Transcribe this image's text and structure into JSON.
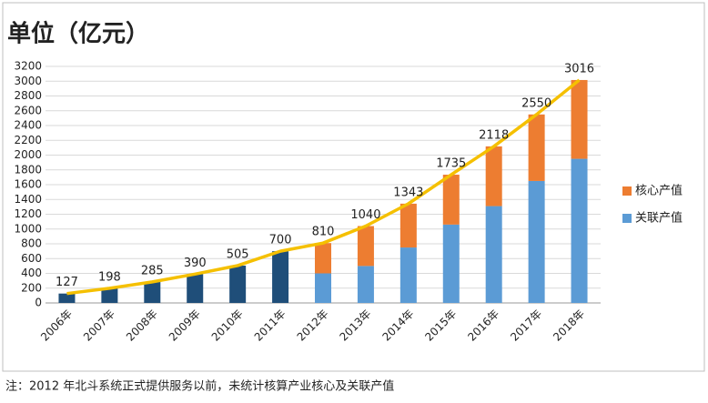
{
  "chart_data": {
    "type": "bar",
    "title": "单位（亿元）",
    "categories": [
      "2006年",
      "2007年",
      "2008年",
      "2009年",
      "2010年",
      "2011年",
      "2012年",
      "2013年",
      "2014年",
      "2015年",
      "2016年",
      "2017年",
      "2018年"
    ],
    "series": [
      {
        "color": "#1f4e79",
        "values": [
          127,
          198,
          285,
          390,
          505,
          700,
          null,
          null,
          null,
          null,
          null,
          null,
          null
        ]
      },
      {
        "name": "关联产值",
        "color": "#5b9bd5",
        "values": [
          null,
          null,
          null,
          null,
          null,
          null,
          400,
          500,
          750,
          1060,
          1310,
          1650,
          1950
        ]
      },
      {
        "name": "核心产值",
        "color": "#ed7d31",
        "values": [
          null,
          null,
          null,
          null,
          null,
          null,
          410,
          540,
          593,
          675,
          808,
          900,
          1066
        ]
      }
    ],
    "line": {
      "type": "line",
      "color": "#f5c000",
      "values": [
        127,
        198,
        285,
        390,
        505,
        700,
        810,
        1040,
        1343,
        1735,
        2118,
        2550,
        3016
      ]
    },
    "ylim": [
      0,
      3200
    ],
    "yticks": [
      0,
      200,
      400,
      600,
      800,
      1000,
      1200,
      1400,
      1600,
      1800,
      2000,
      2200,
      2400,
      2600,
      2800,
      3000,
      3200
    ],
    "grid": true,
    "legend": "right",
    "note": "注：2012 年北斗系统正式提供服务以前，未统计核算产业核心及关联产值"
  }
}
